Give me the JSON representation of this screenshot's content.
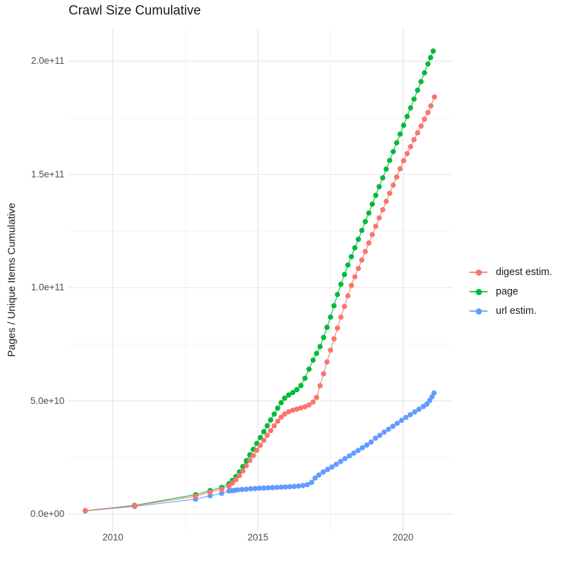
{
  "title": "Crawl Size Cumulative",
  "y_axis": {
    "label": "Pages / Unique Items Cumulative",
    "ticks": [
      {
        "label": "0.0e+00",
        "value": 0
      },
      {
        "label": "5.0e+10",
        "value": 50
      },
      {
        "label": "1.0e+11",
        "value": 100
      },
      {
        "label": "1.5e+11",
        "value": 150
      },
      {
        "label": "2.0e+11",
        "value": 200
      }
    ]
  },
  "x_axis": {
    "ticks": [
      {
        "label": "2010",
        "year": 2010
      },
      {
        "label": "2015",
        "year": 2015
      },
      {
        "label": "2020",
        "year": 2020
      }
    ]
  },
  "legend": {
    "items": [
      {
        "key": "digest",
        "label": "digest estim.",
        "color": "#F8766D"
      },
      {
        "key": "page",
        "label": "page",
        "color": "#00BA38"
      },
      {
        "key": "url",
        "label": "url estim.",
        "color": "#619CFF"
      }
    ]
  },
  "colors": {
    "digest": "#F8766D",
    "page": "#00BA38",
    "url": "#619CFF",
    "grid_major": "#E7E7E7",
    "grid_minor": "#F2F2F2",
    "tick_text": "#4d4d4d"
  },
  "chart_data": {
    "type": "scatter",
    "note": "cumulative crawl size over time; x = year (decimal), y = items in billions (1e9)",
    "value_scale": 1000000000,
    "xlim": [
      2008.45,
      2021.7
    ],
    "ylim_billions": [
      0,
      214
    ],
    "grid": true,
    "legend_position": "right",
    "draw_order": [
      "url",
      "page",
      "digest"
    ],
    "series": [
      {
        "name": "digest estim.",
        "key": "digest",
        "color": "#F8766D",
        "points": [
          [
            2009.05,
            1.5
          ],
          [
            2010.75,
            3.7
          ],
          [
            2012.85,
            7.9
          ],
          [
            2013.35,
            9.7
          ],
          [
            2013.75,
            11.0
          ],
          [
            2014.0,
            12.4
          ],
          [
            2014.12,
            13.7
          ],
          [
            2014.24,
            15.2
          ],
          [
            2014.36,
            17.0
          ],
          [
            2014.48,
            19.1
          ],
          [
            2014.6,
            21.4
          ],
          [
            2014.72,
            23.7
          ],
          [
            2014.84,
            25.9
          ],
          [
            2014.96,
            28.2
          ],
          [
            2015.08,
            30.4
          ],
          [
            2015.2,
            32.6
          ],
          [
            2015.32,
            34.8
          ],
          [
            2015.44,
            36.9
          ],
          [
            2015.56,
            39.0
          ],
          [
            2015.68,
            41.0
          ],
          [
            2015.8,
            42.8
          ],
          [
            2015.92,
            44.2
          ],
          [
            2016.06,
            45.2
          ],
          [
            2016.2,
            45.9
          ],
          [
            2016.34,
            46.4
          ],
          [
            2016.48,
            46.9
          ],
          [
            2016.62,
            47.4
          ],
          [
            2016.76,
            48.2
          ],
          [
            2016.9,
            49.5
          ],
          [
            2017.02,
            51.5
          ],
          [
            2017.14,
            56.7
          ],
          [
            2017.26,
            62.0
          ],
          [
            2017.38,
            67.2
          ],
          [
            2017.5,
            72.4
          ],
          [
            2017.62,
            77.4
          ],
          [
            2017.74,
            82.2
          ],
          [
            2017.86,
            87.0
          ],
          [
            2017.98,
            91.7
          ],
          [
            2018.1,
            96.4
          ],
          [
            2018.22,
            101.0
          ],
          [
            2018.34,
            104.8
          ],
          [
            2018.46,
            108.5
          ],
          [
            2018.58,
            112.2
          ],
          [
            2018.7,
            116.0
          ],
          [
            2018.82,
            119.7
          ],
          [
            2018.94,
            123.4
          ],
          [
            2019.06,
            127.1
          ],
          [
            2019.18,
            130.8
          ],
          [
            2019.3,
            134.4
          ],
          [
            2019.42,
            138.1
          ],
          [
            2019.54,
            141.7
          ],
          [
            2019.66,
            145.3
          ],
          [
            2019.78,
            148.9
          ],
          [
            2019.9,
            152.5
          ],
          [
            2020.02,
            156.1
          ],
          [
            2020.14,
            159.2
          ],
          [
            2020.26,
            162.3
          ],
          [
            2020.38,
            165.4
          ],
          [
            2020.5,
            168.4
          ],
          [
            2020.62,
            171.4
          ],
          [
            2020.74,
            174.4
          ],
          [
            2020.86,
            177.4
          ],
          [
            2020.96,
            180.3
          ],
          [
            2021.08,
            184.2
          ]
        ]
      },
      {
        "name": "page",
        "key": "page",
        "color": "#00BA38",
        "points": [
          [
            2009.05,
            1.5
          ],
          [
            2010.75,
            3.9
          ],
          [
            2012.85,
            8.6
          ],
          [
            2013.35,
            10.4
          ],
          [
            2013.75,
            11.8
          ],
          [
            2014.0,
            13.4
          ],
          [
            2014.12,
            14.9
          ],
          [
            2014.24,
            16.6
          ],
          [
            2014.36,
            18.6
          ],
          [
            2014.48,
            21.0
          ],
          [
            2014.6,
            23.6
          ],
          [
            2014.72,
            26.2
          ],
          [
            2014.84,
            28.6
          ],
          [
            2014.96,
            31.2
          ],
          [
            2015.08,
            33.8
          ],
          [
            2015.2,
            36.4
          ],
          [
            2015.32,
            39.0
          ],
          [
            2015.44,
            41.6
          ],
          [
            2015.56,
            44.2
          ],
          [
            2015.68,
            46.8
          ],
          [
            2015.8,
            49.2
          ],
          [
            2015.92,
            51.2
          ],
          [
            2016.06,
            52.6
          ],
          [
            2016.2,
            53.7
          ],
          [
            2016.34,
            55.0
          ],
          [
            2016.48,
            56.8
          ],
          [
            2016.62,
            60.0
          ],
          [
            2016.76,
            64.0
          ],
          [
            2016.9,
            68.0
          ],
          [
            2017.02,
            71.0
          ],
          [
            2017.14,
            74.0
          ],
          [
            2017.26,
            78.0
          ],
          [
            2017.38,
            82.5
          ],
          [
            2017.5,
            87.0
          ],
          [
            2017.62,
            92.0
          ],
          [
            2017.74,
            97.0
          ],
          [
            2017.86,
            101.5
          ],
          [
            2017.98,
            105.8
          ],
          [
            2018.1,
            110.0
          ],
          [
            2018.22,
            113.7
          ],
          [
            2018.34,
            117.6
          ],
          [
            2018.46,
            121.4
          ],
          [
            2018.58,
            125.3
          ],
          [
            2018.7,
            129.2
          ],
          [
            2018.82,
            133.0
          ],
          [
            2018.94,
            136.9
          ],
          [
            2019.06,
            140.8
          ],
          [
            2019.18,
            144.6
          ],
          [
            2019.3,
            148.5
          ],
          [
            2019.42,
            152.4
          ],
          [
            2019.54,
            156.2
          ],
          [
            2019.66,
            160.1
          ],
          [
            2019.78,
            164.0
          ],
          [
            2019.9,
            167.8
          ],
          [
            2020.02,
            171.7
          ],
          [
            2020.14,
            175.6
          ],
          [
            2020.26,
            179.4
          ],
          [
            2020.38,
            183.3
          ],
          [
            2020.5,
            187.2
          ],
          [
            2020.62,
            191.0
          ],
          [
            2020.74,
            194.9
          ],
          [
            2020.86,
            198.8
          ],
          [
            2020.95,
            201.6
          ],
          [
            2021.04,
            204.5
          ]
        ]
      },
      {
        "name": "url estim.",
        "key": "url",
        "color": "#619CFF",
        "points": [
          [
            2009.05,
            1.4
          ],
          [
            2010.75,
            3.4
          ],
          [
            2012.85,
            6.6
          ],
          [
            2013.35,
            8.1
          ],
          [
            2013.75,
            9.2
          ],
          [
            2014.0,
            10.2
          ],
          [
            2014.1,
            10.4
          ],
          [
            2014.2,
            10.5
          ],
          [
            2014.3,
            10.7
          ],
          [
            2014.45,
            10.9
          ],
          [
            2014.6,
            11.0
          ],
          [
            2014.75,
            11.2
          ],
          [
            2014.9,
            11.3
          ],
          [
            2015.05,
            11.4
          ],
          [
            2015.2,
            11.5
          ],
          [
            2015.35,
            11.6
          ],
          [
            2015.5,
            11.7
          ],
          [
            2015.65,
            11.8
          ],
          [
            2015.8,
            11.9
          ],
          [
            2015.95,
            12.0
          ],
          [
            2016.1,
            12.1
          ],
          [
            2016.25,
            12.2
          ],
          [
            2016.4,
            12.4
          ],
          [
            2016.55,
            12.6
          ],
          [
            2016.7,
            13.0
          ],
          [
            2016.85,
            14.0
          ],
          [
            2016.97,
            15.9
          ],
          [
            2017.1,
            17.3
          ],
          [
            2017.25,
            18.6
          ],
          [
            2017.4,
            19.7
          ],
          [
            2017.55,
            20.8
          ],
          [
            2017.7,
            22.0
          ],
          [
            2017.85,
            23.3
          ],
          [
            2018.0,
            24.5
          ],
          [
            2018.15,
            25.7
          ],
          [
            2018.3,
            26.9
          ],
          [
            2018.45,
            28.1
          ],
          [
            2018.6,
            29.3
          ],
          [
            2018.75,
            30.5
          ],
          [
            2018.9,
            31.8
          ],
          [
            2019.05,
            33.5
          ],
          [
            2019.2,
            34.8
          ],
          [
            2019.35,
            36.2
          ],
          [
            2019.5,
            37.5
          ],
          [
            2019.65,
            38.8
          ],
          [
            2019.8,
            40.1
          ],
          [
            2019.95,
            41.4
          ],
          [
            2020.1,
            42.7
          ],
          [
            2020.25,
            43.9
          ],
          [
            2020.4,
            45.1
          ],
          [
            2020.55,
            46.3
          ],
          [
            2020.7,
            47.5
          ],
          [
            2020.82,
            48.6
          ],
          [
            2020.92,
            50.2
          ],
          [
            2021.0,
            51.8
          ],
          [
            2021.07,
            53.5
          ]
        ]
      }
    ]
  }
}
